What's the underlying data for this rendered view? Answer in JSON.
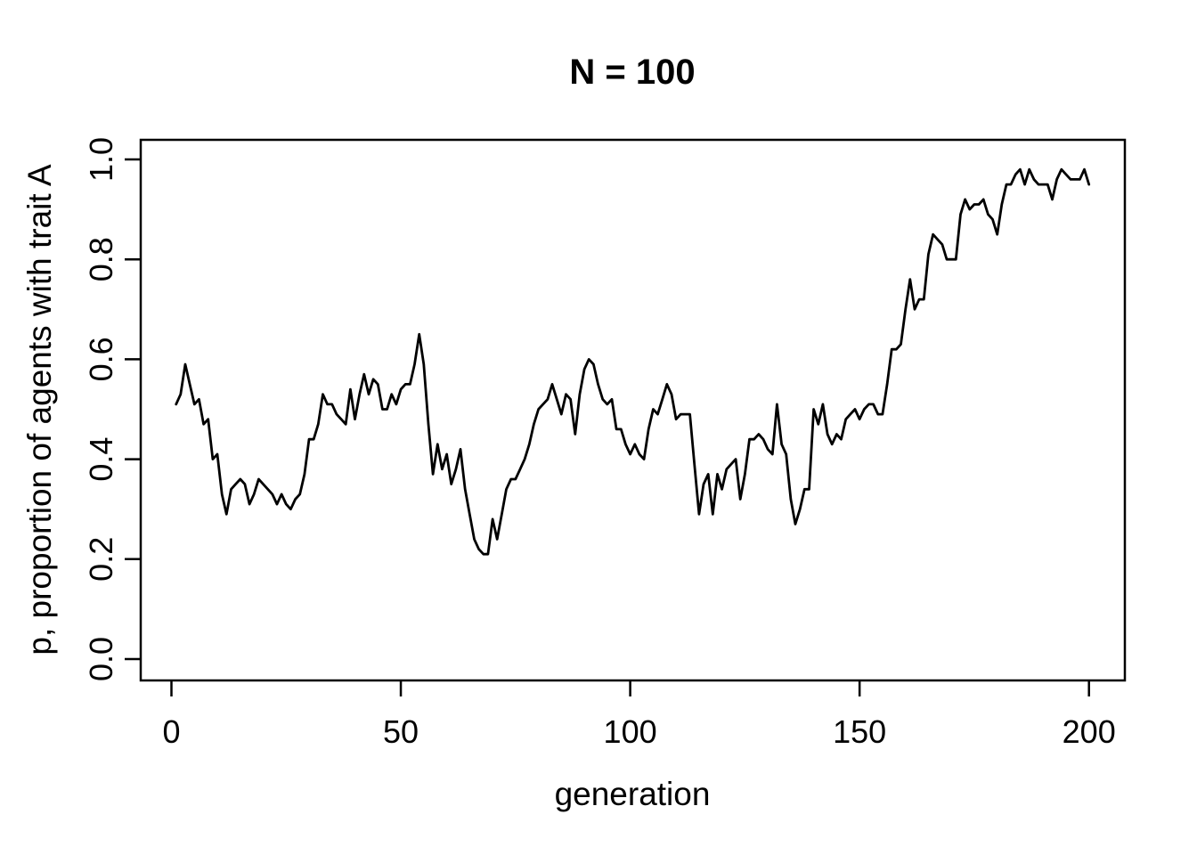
{
  "chart_data": {
    "type": "line",
    "title": "N = 100",
    "xlabel": "generation",
    "ylabel": "p, proportion of agents with trait A",
    "x_tick_labels": [
      "0",
      "50",
      "100",
      "150",
      "200"
    ],
    "x_tick_values": [
      0,
      50,
      100,
      150,
      200
    ],
    "y_tick_labels": [
      "0.0",
      "0.2",
      "0.4",
      "0.6",
      "0.8",
      "1.0"
    ],
    "y_tick_values": [
      0,
      0.2,
      0.4,
      0.6,
      0.8,
      1.0
    ],
    "xlim": [
      0,
      200
    ],
    "ylim": [
      0,
      1
    ],
    "x_start": 1,
    "x_step": 1,
    "grid": false,
    "legend": "none",
    "line_color": "#000000",
    "background_color": "#ffffff",
    "series_name": "p over generations",
    "values": [
      0.51,
      0.53,
      0.59,
      0.55,
      0.51,
      0.52,
      0.47,
      0.48,
      0.4,
      0.41,
      0.33,
      0.29,
      0.34,
      0.35,
      0.36,
      0.35,
      0.31,
      0.33,
      0.36,
      0.35,
      0.34,
      0.33,
      0.31,
      0.33,
      0.31,
      0.3,
      0.32,
      0.33,
      0.37,
      0.44,
      0.44,
      0.47,
      0.53,
      0.51,
      0.51,
      0.49,
      0.48,
      0.47,
      0.54,
      0.48,
      0.53,
      0.57,
      0.53,
      0.56,
      0.55,
      0.5,
      0.5,
      0.53,
      0.51,
      0.54,
      0.55,
      0.55,
      0.59,
      0.65,
      0.59,
      0.47,
      0.37,
      0.43,
      0.38,
      0.41,
      0.35,
      0.38,
      0.42,
      0.34,
      0.29,
      0.24,
      0.22,
      0.21,
      0.21,
      0.28,
      0.24,
      0.29,
      0.34,
      0.36,
      0.36,
      0.38,
      0.4,
      0.43,
      0.47,
      0.5,
      0.51,
      0.52,
      0.55,
      0.52,
      0.49,
      0.53,
      0.52,
      0.45,
      0.53,
      0.58,
      0.6,
      0.59,
      0.55,
      0.52,
      0.51,
      0.52,
      0.46,
      0.46,
      0.43,
      0.41,
      0.43,
      0.41,
      0.4,
      0.46,
      0.5,
      0.49,
      0.52,
      0.55,
      0.53,
      0.48,
      0.49,
      0.49,
      0.49,
      0.39,
      0.29,
      0.35,
      0.37,
      0.29,
      0.37,
      0.34,
      0.38,
      0.39,
      0.4,
      0.32,
      0.37,
      0.44,
      0.44,
      0.45,
      0.44,
      0.42,
      0.41,
      0.51,
      0.43,
      0.41,
      0.32,
      0.27,
      0.3,
      0.34,
      0.34,
      0.5,
      0.47,
      0.51,
      0.45,
      0.43,
      0.45,
      0.44,
      0.48,
      0.49,
      0.5,
      0.48,
      0.5,
      0.51,
      0.51,
      0.49,
      0.49,
      0.55,
      0.62,
      0.62,
      0.63,
      0.7,
      0.76,
      0.7,
      0.72,
      0.72,
      0.81,
      0.85,
      0.84,
      0.83,
      0.8,
      0.8,
      0.8,
      0.89,
      0.92,
      0.9,
      0.91,
      0.91,
      0.92,
      0.89,
      0.88,
      0.85,
      0.91,
      0.95,
      0.95,
      0.97,
      0.98,
      0.95,
      0.98,
      0.96,
      0.95,
      0.95,
      0.95,
      0.92,
      0.96,
      0.98,
      0.97,
      0.96,
      0.96,
      0.96,
      0.98,
      0.95
    ]
  }
}
